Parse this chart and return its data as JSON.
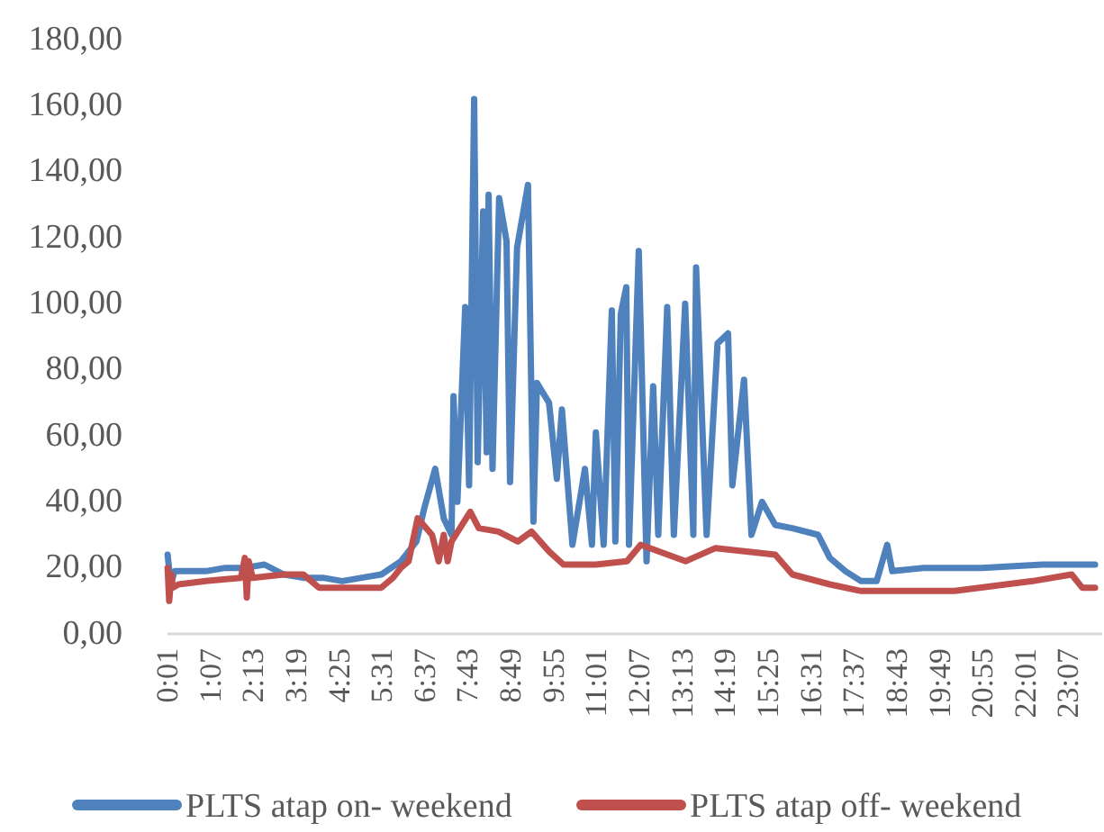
{
  "chart_data": {
    "type": "line",
    "legend": "bottom",
    "grid": false,
    "marker": "none",
    "line_style": "solid",
    "xlim": [
      0.0167,
      23.983
    ],
    "ylim": [
      0,
      180
    ],
    "yticks": [
      {
        "value": 0,
        "label": "0,00"
      },
      {
        "value": 20,
        "label": "20,00"
      },
      {
        "value": 40,
        "label": "40,00"
      },
      {
        "value": 60,
        "label": "60,00"
      },
      {
        "value": 80,
        "label": "80,00"
      },
      {
        "value": 100,
        "label": "100,00"
      },
      {
        "value": 120,
        "label": "120,00"
      },
      {
        "value": 140,
        "label": "140,00"
      },
      {
        "value": 160,
        "label": "160,00"
      },
      {
        "value": 180,
        "label": "180,00"
      }
    ],
    "xticks": [
      {
        "value": 0.0167,
        "label": "0:01"
      },
      {
        "value": 1.1167,
        "label": "1:07"
      },
      {
        "value": 2.2167,
        "label": "2:13"
      },
      {
        "value": 3.3167,
        "label": "3:19"
      },
      {
        "value": 4.4167,
        "label": "4:25"
      },
      {
        "value": 5.5167,
        "label": "5:31"
      },
      {
        "value": 6.6167,
        "label": "6:37"
      },
      {
        "value": 7.7167,
        "label": "7:43"
      },
      {
        "value": 8.8167,
        "label": "8:49"
      },
      {
        "value": 9.9167,
        "label": "9:55"
      },
      {
        "value": 11.0167,
        "label": "11:01"
      },
      {
        "value": 12.1167,
        "label": "12:07"
      },
      {
        "value": 13.2167,
        "label": "13:13"
      },
      {
        "value": 14.3167,
        "label": "14:19"
      },
      {
        "value": 15.4167,
        "label": "15:25"
      },
      {
        "value": 16.5167,
        "label": "16:31"
      },
      {
        "value": 17.6167,
        "label": "17:37"
      },
      {
        "value": 18.7167,
        "label": "18:43"
      },
      {
        "value": 19.8167,
        "label": "19:49"
      },
      {
        "value": 20.9167,
        "label": "20:55"
      },
      {
        "value": 22.0167,
        "label": "22:01"
      },
      {
        "value": 23.1167,
        "label": "23:07"
      }
    ],
    "series": [
      {
        "name": "PLTS atap on- weekend",
        "color": "#4f81bd",
        "x": [
          0.02,
          0.1,
          0.2,
          1.0,
          1.5,
          2.0,
          2.5,
          3.0,
          3.5,
          4.0,
          4.5,
          5.0,
          5.5,
          6.0,
          6.4,
          6.6,
          6.88,
          7.1,
          7.3,
          7.35,
          7.45,
          7.65,
          7.75,
          7.88,
          7.97,
          8.11,
          8.2,
          8.25,
          8.35,
          8.52,
          8.71,
          8.8,
          8.98,
          9.26,
          9.4,
          9.49,
          9.8,
          10.0,
          10.13,
          10.4,
          10.72,
          10.9,
          11.0,
          11.2,
          11.41,
          11.5,
          11.64,
          11.78,
          11.85,
          12.1,
          12.3,
          12.47,
          12.6,
          12.83,
          13.0,
          13.29,
          13.5,
          13.57,
          13.84,
          14.12,
          14.39,
          14.5,
          14.8,
          14.99,
          15.26,
          15.6,
          16.04,
          16.7,
          17.0,
          17.4,
          17.8,
          18.2,
          18.47,
          18.6,
          19.4,
          20.9,
          22.45,
          23.0,
          23.8
        ],
        "values": [
          24,
          15,
          19,
          19,
          20,
          20,
          21,
          18,
          17,
          17,
          16,
          17,
          18,
          22,
          28,
          38,
          50,
          35,
          30,
          72,
          40,
          99,
          45,
          162,
          52,
          128,
          55,
          133,
          50,
          132,
          119,
          46,
          117,
          136,
          34,
          76,
          70,
          47,
          68,
          27,
          50,
          27,
          61,
          27,
          98,
          28,
          97,
          105,
          27,
          116,
          22,
          75,
          30,
          99,
          30,
          100,
          30,
          111,
          30,
          88,
          91,
          45,
          77,
          30,
          40,
          33,
          32,
          30,
          23,
          19,
          16,
          16,
          27,
          19,
          20,
          20,
          21,
          21,
          21
        ]
      },
      {
        "name": "PLTS atap off- weekend",
        "color": "#c0504d",
        "x": [
          0.02,
          0.06,
          0.12,
          0.15,
          0.3,
          1.0,
          1.9,
          2.0,
          2.05,
          2.1,
          2.2,
          3.0,
          3.5,
          3.9,
          4.5,
          5.0,
          5.5,
          5.8,
          6.0,
          6.2,
          6.43,
          6.8,
          6.97,
          7.1,
          7.2,
          7.3,
          7.78,
          8.0,
          8.5,
          9.0,
          9.35,
          9.8,
          10.17,
          11.0,
          11.8,
          12.15,
          13.3,
          14.07,
          15.6,
          16.04,
          17.0,
          17.8,
          20.2,
          22.2,
          23.2,
          23.47,
          23.8
        ],
        "values": [
          20,
          10,
          18,
          14,
          15,
          16,
          17,
          23,
          11,
          22,
          17,
          18,
          18,
          14,
          14,
          14,
          14,
          17,
          20,
          22,
          35,
          30,
          22,
          30,
          22,
          28,
          37,
          32,
          31,
          28,
          31,
          25,
          21,
          21,
          22,
          27,
          22,
          26,
          24,
          18,
          15,
          13,
          13,
          16,
          18,
          14,
          14
        ]
      }
    ]
  }
}
